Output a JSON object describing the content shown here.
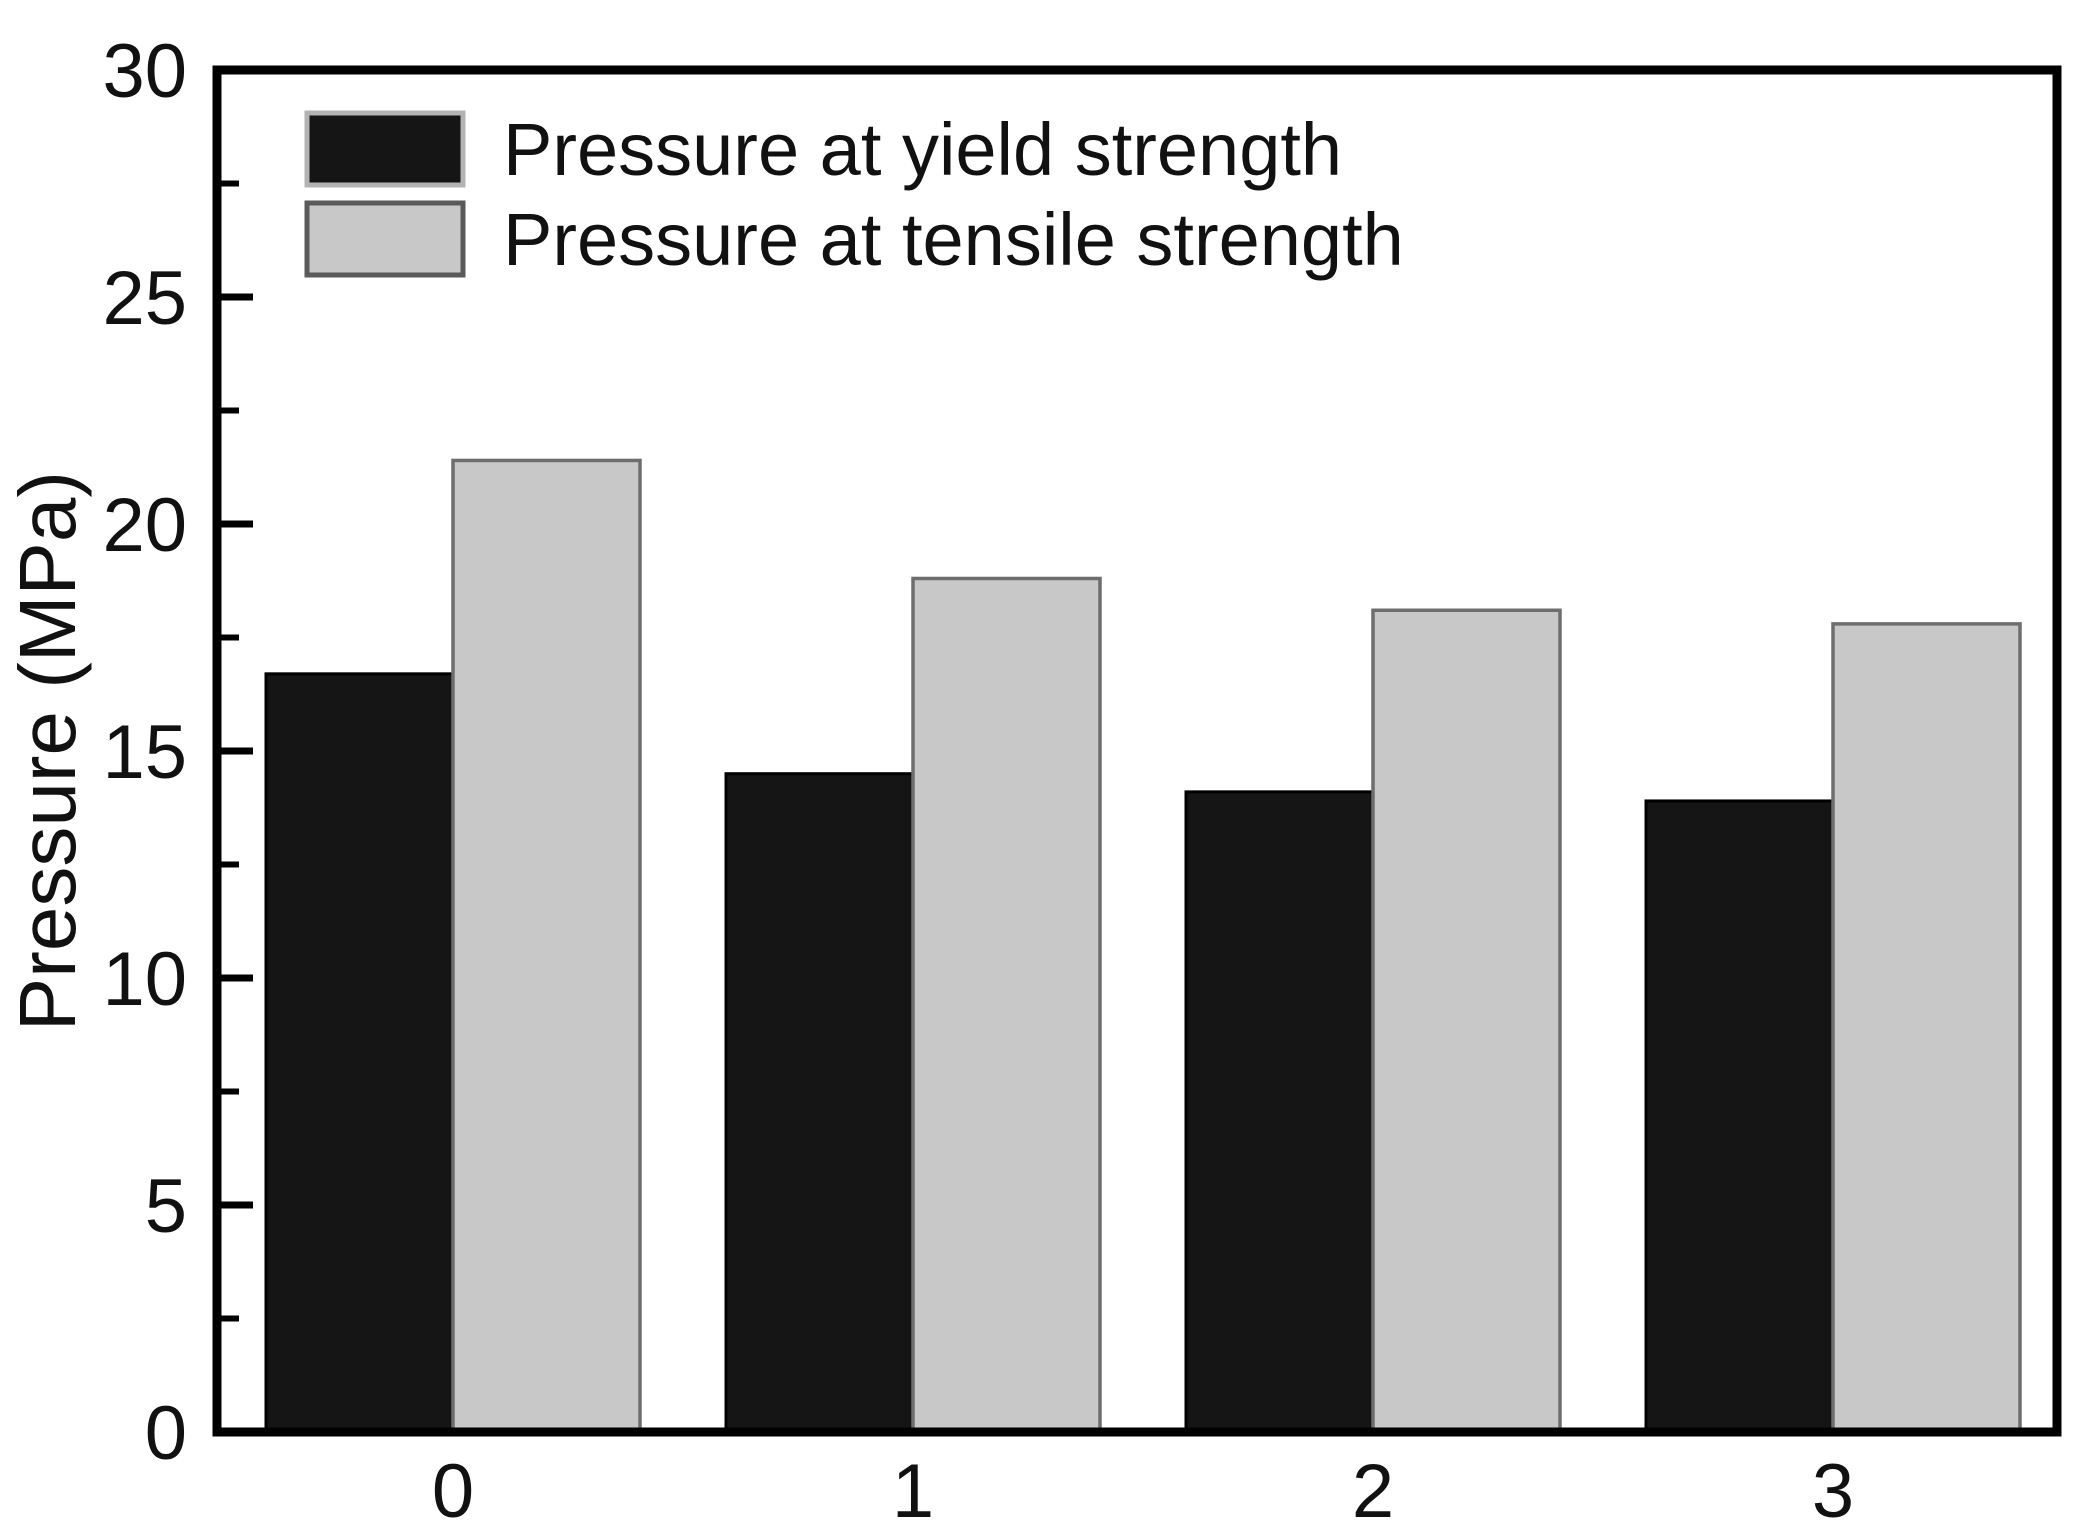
{
  "figure": {
    "background_color": "#ffffff",
    "axis_color": "#000000",
    "text_color": "#111111"
  },
  "chart_data": {
    "type": "bar",
    "categories": [
      "0",
      "1",
      "2",
      "3"
    ],
    "series": [
      {
        "name": "Pressure at yield strength",
        "values": [
          16.7,
          14.5,
          14.1,
          13.9
        ],
        "fill": "#151515",
        "stroke": "#000000",
        "legend_swatch_stroke": "#b3b3b3"
      },
      {
        "name": "Pressure at tensile strength",
        "values": [
          21.4,
          18.8,
          18.1,
          17.8
        ],
        "fill": "#c8c8c8",
        "stroke": "#6e6e6e",
        "legend_swatch_stroke": "#5a5a5a"
      }
    ],
    "title": "",
    "xlabel": "",
    "ylabel": "Pressure (MPa)",
    "ylim": [
      0,
      30
    ],
    "ytick_step": 5,
    "yminor_step": 2.5,
    "ytick_labels": [
      "0",
      "5",
      "10",
      "15",
      "20",
      "25",
      "30"
    ],
    "grid": false,
    "legend_position": "top-left"
  }
}
